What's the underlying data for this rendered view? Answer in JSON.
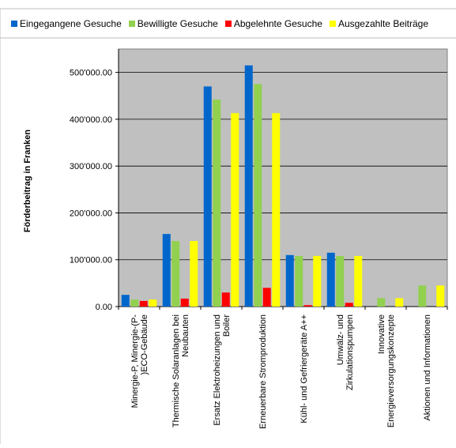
{
  "chart_data": {
    "type": "bar",
    "title": "",
    "xlabel": "",
    "ylabel": "Förderbeitrag in Franken",
    "ylim": [
      0,
      550000
    ],
    "yticks": [
      "0.00",
      "100'000.00",
      "200'000.00",
      "300'000.00",
      "400'000.00",
      "500'000.00"
    ],
    "ytick_values": [
      0,
      100000,
      200000,
      300000,
      400000,
      500000
    ],
    "grid": true,
    "legend_position": "top",
    "categories": [
      [
        "Minergie-P, Minergie-(P-",
        ")ECO-Gebäude"
      ],
      [
        "Thermische Solaranlagen bei",
        "Neubauten"
      ],
      [
        "Ersatz Elektroheizungen und",
        "Boiler"
      ],
      [
        "Erneuerbare Stromproduktion"
      ],
      [
        "Kühl- und Gefriergeräte A++"
      ],
      [
        "Umwälz- und",
        "Zirkulationspumpen"
      ],
      [
        "Innovative",
        "Energieversorgungskonzepte"
      ],
      [
        "Aktionen und Informationen"
      ]
    ],
    "series": [
      {
        "name": "Eingegangene Gesuche",
        "color": "#0066CC",
        "values": [
          25000,
          155000,
          470000,
          515000,
          110000,
          115000,
          0,
          0
        ]
      },
      {
        "name": "Bewilligte Gesuche",
        "color": "#92D050",
        "values": [
          15000,
          140000,
          442000,
          475000,
          108000,
          108000,
          18000,
          45000
        ]
      },
      {
        "name": "Abgelehnte Gesuche",
        "color": "#FF0000",
        "values": [
          12000,
          17000,
          30000,
          40000,
          3000,
          8000,
          0,
          0
        ]
      },
      {
        "name": "Ausgezahlte Beiträge",
        "color": "#FFFF00",
        "values": [
          15000,
          140000,
          413000,
          413000,
          108000,
          108000,
          18000,
          45000
        ]
      }
    ],
    "colors": {
      "plot_background": "#C0C0C0",
      "gridline": "#000000"
    }
  }
}
